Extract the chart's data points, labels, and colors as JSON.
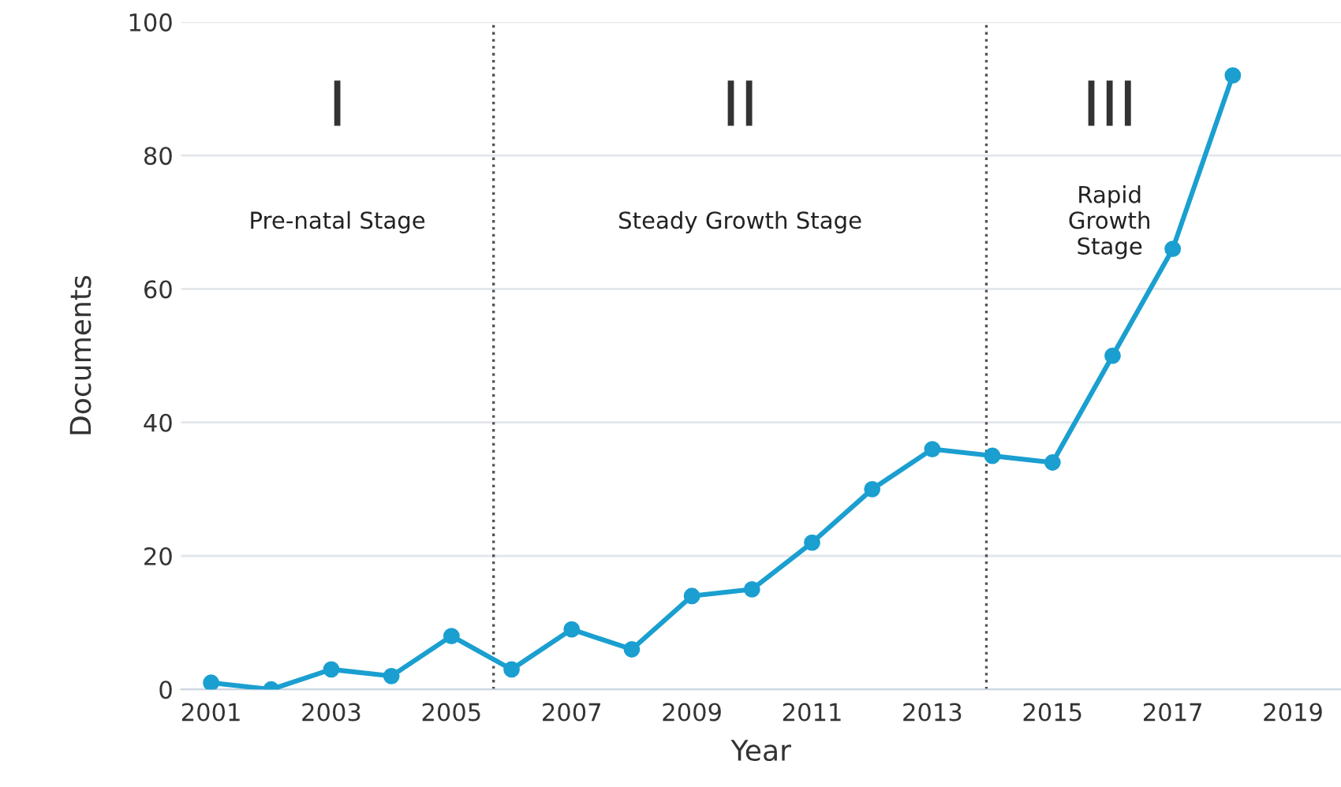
{
  "chart_data": {
    "type": "line",
    "xlabel": "Year",
    "ylabel": "Documents",
    "x": [
      2001,
      2002,
      2003,
      2004,
      2005,
      2006,
      2007,
      2008,
      2009,
      2010,
      2011,
      2012,
      2013,
      2014,
      2015,
      2016,
      2017,
      2018
    ],
    "series": [
      {
        "color": "#1a9fd0",
        "values": [
          1,
          0,
          3,
          2,
          8,
          3,
          9,
          6,
          14,
          15,
          22,
          30,
          36,
          35,
          34,
          50,
          66,
          92
        ]
      }
    ],
    "xlim": [
      2000.5,
      2019.8
    ],
    "ylim": [
      0,
      100
    ],
    "xticks": [
      2001,
      2003,
      2005,
      2007,
      2009,
      2011,
      2013,
      2015,
      2017,
      2019
    ],
    "yticks": [
      0,
      20,
      40,
      60,
      80,
      100
    ],
    "grid": "y",
    "marker": "circle",
    "line_style": "solid",
    "ref_lines": [
      {
        "axis": "x",
        "value": 2005.7,
        "color": "#555555",
        "line_style": "dotted"
      },
      {
        "axis": "x",
        "value": 2013.9,
        "color": "#555555",
        "line_style": "dotted"
      }
    ],
    "annotations": [
      "I",
      "Pre-natal Stage",
      "II",
      "Steady Growth Stage",
      "III",
      "Rapid\nGrowth\nStage"
    ]
  }
}
